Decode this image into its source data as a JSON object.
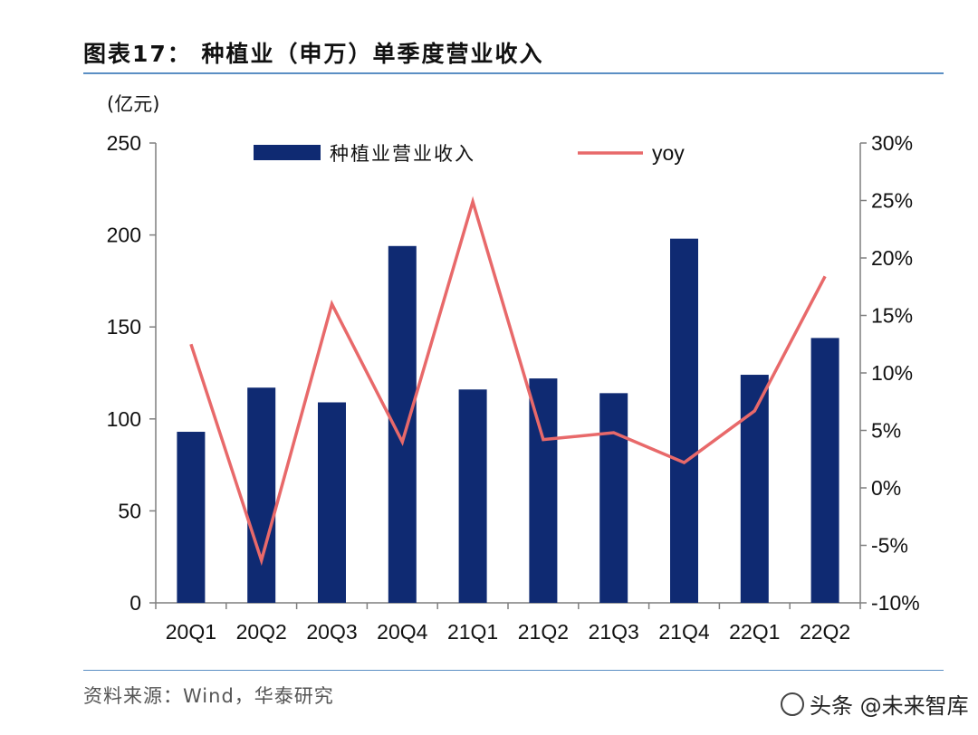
{
  "header": {
    "title": "图表17： 种植业（申万）单季度营业收入",
    "unit": "(亿元)"
  },
  "footer": {
    "source": "资料来源：Wind，华泰研究",
    "watermark": "头条 @未来智库"
  },
  "colors": {
    "bar": "#0f2a72",
    "line": "#e8696a",
    "axis": "#7f7f7f",
    "rule": "#5b8fc4"
  },
  "chart_data": {
    "type": "bar",
    "categories": [
      "20Q1",
      "20Q2",
      "20Q3",
      "20Q4",
      "21Q1",
      "21Q2",
      "21Q3",
      "21Q4",
      "22Q1",
      "22Q2"
    ],
    "series": [
      {
        "name": "种植业营业收入",
        "type": "bar",
        "axis": "left",
        "values": [
          93,
          117,
          109,
          194,
          116,
          122,
          114,
          198,
          124,
          144
        ]
      },
      {
        "name": "yoy",
        "type": "line",
        "axis": "right",
        "values": [
          12.5,
          -6.3,
          16.0,
          4.0,
          24.9,
          4.2,
          4.8,
          2.2,
          6.7,
          18.4
        ]
      }
    ],
    "ylim": [
      0,
      250
    ],
    "yticks": [
      "0",
      "50",
      "100",
      "150",
      "200",
      "250"
    ],
    "y2lim": [
      -10,
      30
    ],
    "y2ticks": [
      "-10%",
      "-5%",
      "0%",
      "5%",
      "10%",
      "15%",
      "20%",
      "25%",
      "30%"
    ],
    "legend_position": "top",
    "grid": false
  }
}
